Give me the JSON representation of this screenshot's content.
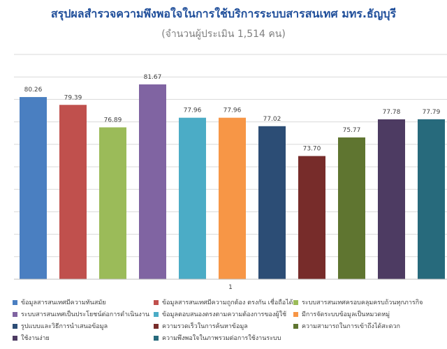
{
  "chart_data": {
    "type": "bar",
    "title": "สรุปผลสำรวจความพึงพอใจในการใช้บริการระบบสารสนเทศ มทร.ธัญบุรี",
    "subtitle": "(จำนวนผู้ประเมิน 1,514 คน)",
    "categories": [
      "1"
    ],
    "ylim": [
      60,
      85
    ],
    "grid": true,
    "legend_position": "bottom",
    "series": [
      {
        "name": "ข้อมูลสารสนเทศมีความทันสมัย",
        "value": 80.26,
        "label": "80.26",
        "color": "#4a7fc1"
      },
      {
        "name": "ข้อมูลสารสนเทศมีความถูกต้อง ตรงกัน เชื่อถือได้",
        "value": 79.39,
        "label": "79.39",
        "color": "#c0504d"
      },
      {
        "name": "ระบบสารสนเทศครอบคลุมครบถ้วนทุกภารกิจ",
        "value": 76.89,
        "label": "76.89",
        "color": "#9bbb59"
      },
      {
        "name": "ระบบสารสนเทศเป็นประโยชน์ต่อการดำเนินงาน",
        "value": 81.67,
        "label": "81.67",
        "color": "#8064a2"
      },
      {
        "name": "ข้อมูลตอบสนองตรงตามความต้องการของผู้ใช้",
        "value": 77.96,
        "label": "77.96",
        "color": "#4bacc6"
      },
      {
        "name": "มีการจัดระบบข้อมูลเป็นหมวดหมู่",
        "value": 77.96,
        "label": "77.96",
        "color": "#f79646"
      },
      {
        "name": "รูปแบบและวิธีการนำเสนอข้อมูล",
        "value": 77.02,
        "label": "77.02",
        "color": "#2c4d75"
      },
      {
        "name": "ความรวดเร็วในการค้นหาข้อมูล",
        "value": 73.7,
        "label": "73.70",
        "color": "#772c2a"
      },
      {
        "name": "ความสามารถในการเข้าถึงได้สะดวก",
        "value": 75.77,
        "label": "75.77",
        "color": "#5f7530"
      },
      {
        "name": "ใช้งานง่าย",
        "value": 77.78,
        "label": "77.78",
        "color": "#4d3b62"
      },
      {
        "name": "ความพึงพอใจในภาพรวมต่อการใช้งานระบบ",
        "value": 77.79,
        "label": "77.79",
        "color": "#276a7c"
      }
    ]
  }
}
